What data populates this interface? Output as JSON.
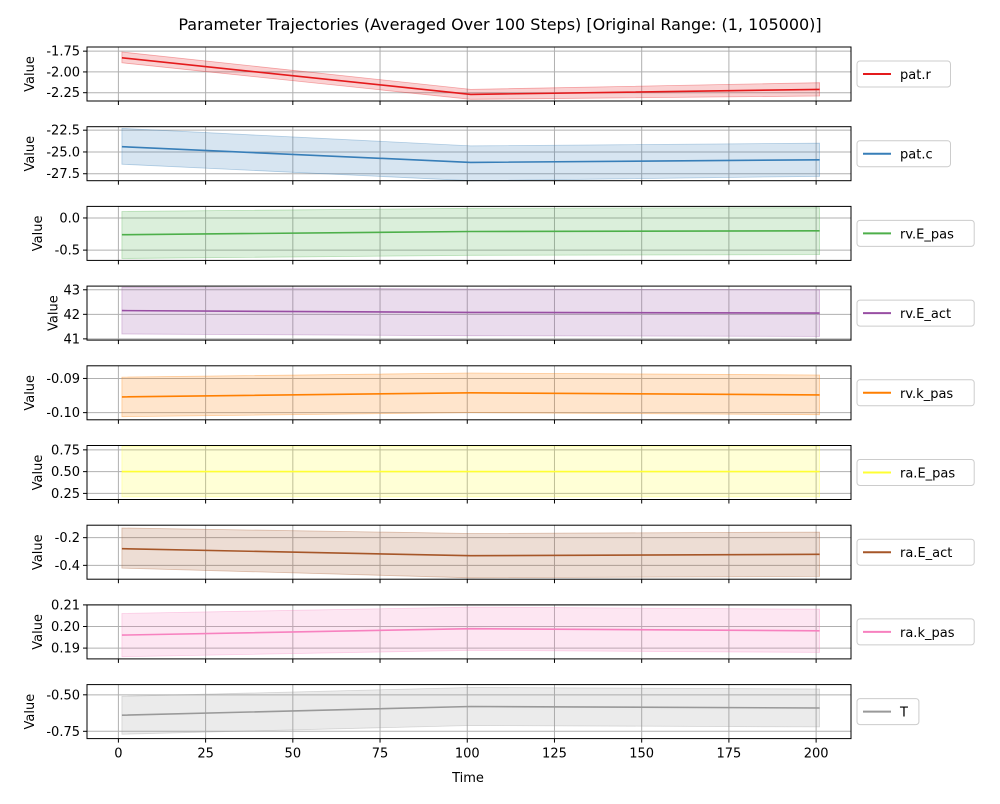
{
  "title": "Parameter Trajectories (Averaged Over 100 Steps) [Original Range: (1, 105000)]",
  "xlabel": "Time",
  "xlim": [
    -9,
    210
  ],
  "xticks": [
    0,
    25,
    50,
    75,
    100,
    125,
    150,
    175,
    200
  ],
  "chart_data": {
    "type": "line",
    "title": "Parameter Trajectories (Averaged Over 100 Steps) [Original Range: (1, 105000)]",
    "xlabel": "Time",
    "grid": true,
    "legend_position": "right",
    "x": [
      1,
      101,
      201
    ],
    "subplots": [
      {
        "name": "pat.r",
        "color": "#e41a1c",
        "ylabel": "Value",
        "ylim": [
          -2.35,
          -1.7
        ],
        "yticks": [
          "-1.75",
          "-2.00",
          "-2.25"
        ],
        "ytick_values": [
          -1.75,
          -2.0,
          -2.25
        ],
        "values": [
          -1.83,
          -2.27,
          -2.21
        ],
        "lower": [
          -1.89,
          -2.33,
          -2.29
        ],
        "upper": [
          -1.76,
          -2.21,
          -2.13
        ]
      },
      {
        "name": "pat.c",
        "color": "#377eb8",
        "ylabel": "Value",
        "ylim": [
          -28.3,
          -22.1
        ],
        "yticks": [
          "-22.5",
          "-25.0",
          "-27.5"
        ],
        "ytick_values": [
          -22.5,
          -25.0,
          -27.5
        ],
        "values": [
          -24.4,
          -26.2,
          -25.9
        ],
        "lower": [
          -26.4,
          -28.3,
          -27.8
        ],
        "upper": [
          -22.3,
          -24.3,
          -24.0
        ]
      },
      {
        "name": "rv.E_pas",
        "color": "#4daf4a",
        "ylabel": "Value",
        "ylim": [
          -0.66,
          0.18
        ],
        "yticks": [
          "0.0",
          "-0.5"
        ],
        "ytick_values": [
          0.0,
          -0.5
        ],
        "values": [
          -0.26,
          -0.21,
          -0.2
        ],
        "lower": [
          -0.63,
          -0.58,
          -0.57
        ],
        "upper": [
          0.1,
          0.15,
          0.16
        ]
      },
      {
        "name": "rv.E_act",
        "color": "#984ea3",
        "ylabel": "Value",
        "ylim": [
          40.95,
          43.15
        ],
        "yticks": [
          "43",
          "42",
          "41"
        ],
        "ytick_values": [
          43,
          42,
          41
        ],
        "values": [
          42.15,
          42.08,
          42.05
        ],
        "lower": [
          41.2,
          41.13,
          41.1
        ],
        "upper": [
          43.1,
          43.03,
          43.0
        ]
      },
      {
        "name": "rv.k_pas",
        "color": "#ff7f00",
        "ylabel": "Value",
        "ylim": [
          -0.1021,
          -0.0863
        ],
        "yticks": [
          "-0.09",
          "-0.10"
        ],
        "ytick_values": [
          -0.09,
          -0.1
        ],
        "values": [
          -0.0954,
          -0.0942,
          -0.0948
        ],
        "lower": [
          -0.1012,
          -0.1,
          -0.1006
        ],
        "upper": [
          -0.0896,
          -0.0884,
          -0.089
        ]
      },
      {
        "name": "ra.E_pas",
        "color": "#ffff33",
        "ylabel": "Value",
        "ylim": [
          0.18,
          0.8
        ],
        "yticks": [
          "0.75",
          "0.50",
          "0.25"
        ],
        "ytick_values": [
          0.75,
          0.5,
          0.25
        ],
        "values": [
          0.5,
          0.5,
          0.5
        ],
        "lower": [
          0.21,
          0.21,
          0.21
        ],
        "upper": [
          0.79,
          0.79,
          0.79
        ]
      },
      {
        "name": "ra.E_act",
        "color": "#a65628",
        "ylabel": "Value",
        "ylim": [
          -0.5,
          -0.11
        ],
        "yticks": [
          "-0.2",
          "-0.4"
        ],
        "ytick_values": [
          -0.2,
          -0.4
        ],
        "values": [
          -0.28,
          -0.33,
          -0.32
        ],
        "lower": [
          -0.42,
          -0.49,
          -0.48
        ],
        "upper": [
          -0.13,
          -0.17,
          -0.16
        ]
      },
      {
        "name": "ra.k_pas",
        "color": "#f781bf",
        "ylabel": "Value",
        "ylim": [
          0.185,
          0.21
        ],
        "yticks": [
          "0.21",
          "0.20",
          "0.19"
        ],
        "ytick_values": [
          0.21,
          0.2,
          0.19
        ],
        "values": [
          0.196,
          0.199,
          0.198
        ],
        "lower": [
          0.186,
          0.189,
          0.188
        ],
        "upper": [
          0.206,
          0.209,
          0.208
        ]
      },
      {
        "name": "T",
        "color": "#999999",
        "ylabel": "Value",
        "ylim": [
          -0.8,
          -0.43
        ],
        "yticks": [
          "-0.50",
          "-0.75"
        ],
        "ytick_values": [
          -0.5,
          -0.75
        ],
        "values": [
          -0.64,
          -0.58,
          -0.59
        ],
        "lower": [
          -0.77,
          -0.71,
          -0.72
        ],
        "upper": [
          -0.51,
          -0.45,
          -0.46
        ]
      }
    ]
  }
}
